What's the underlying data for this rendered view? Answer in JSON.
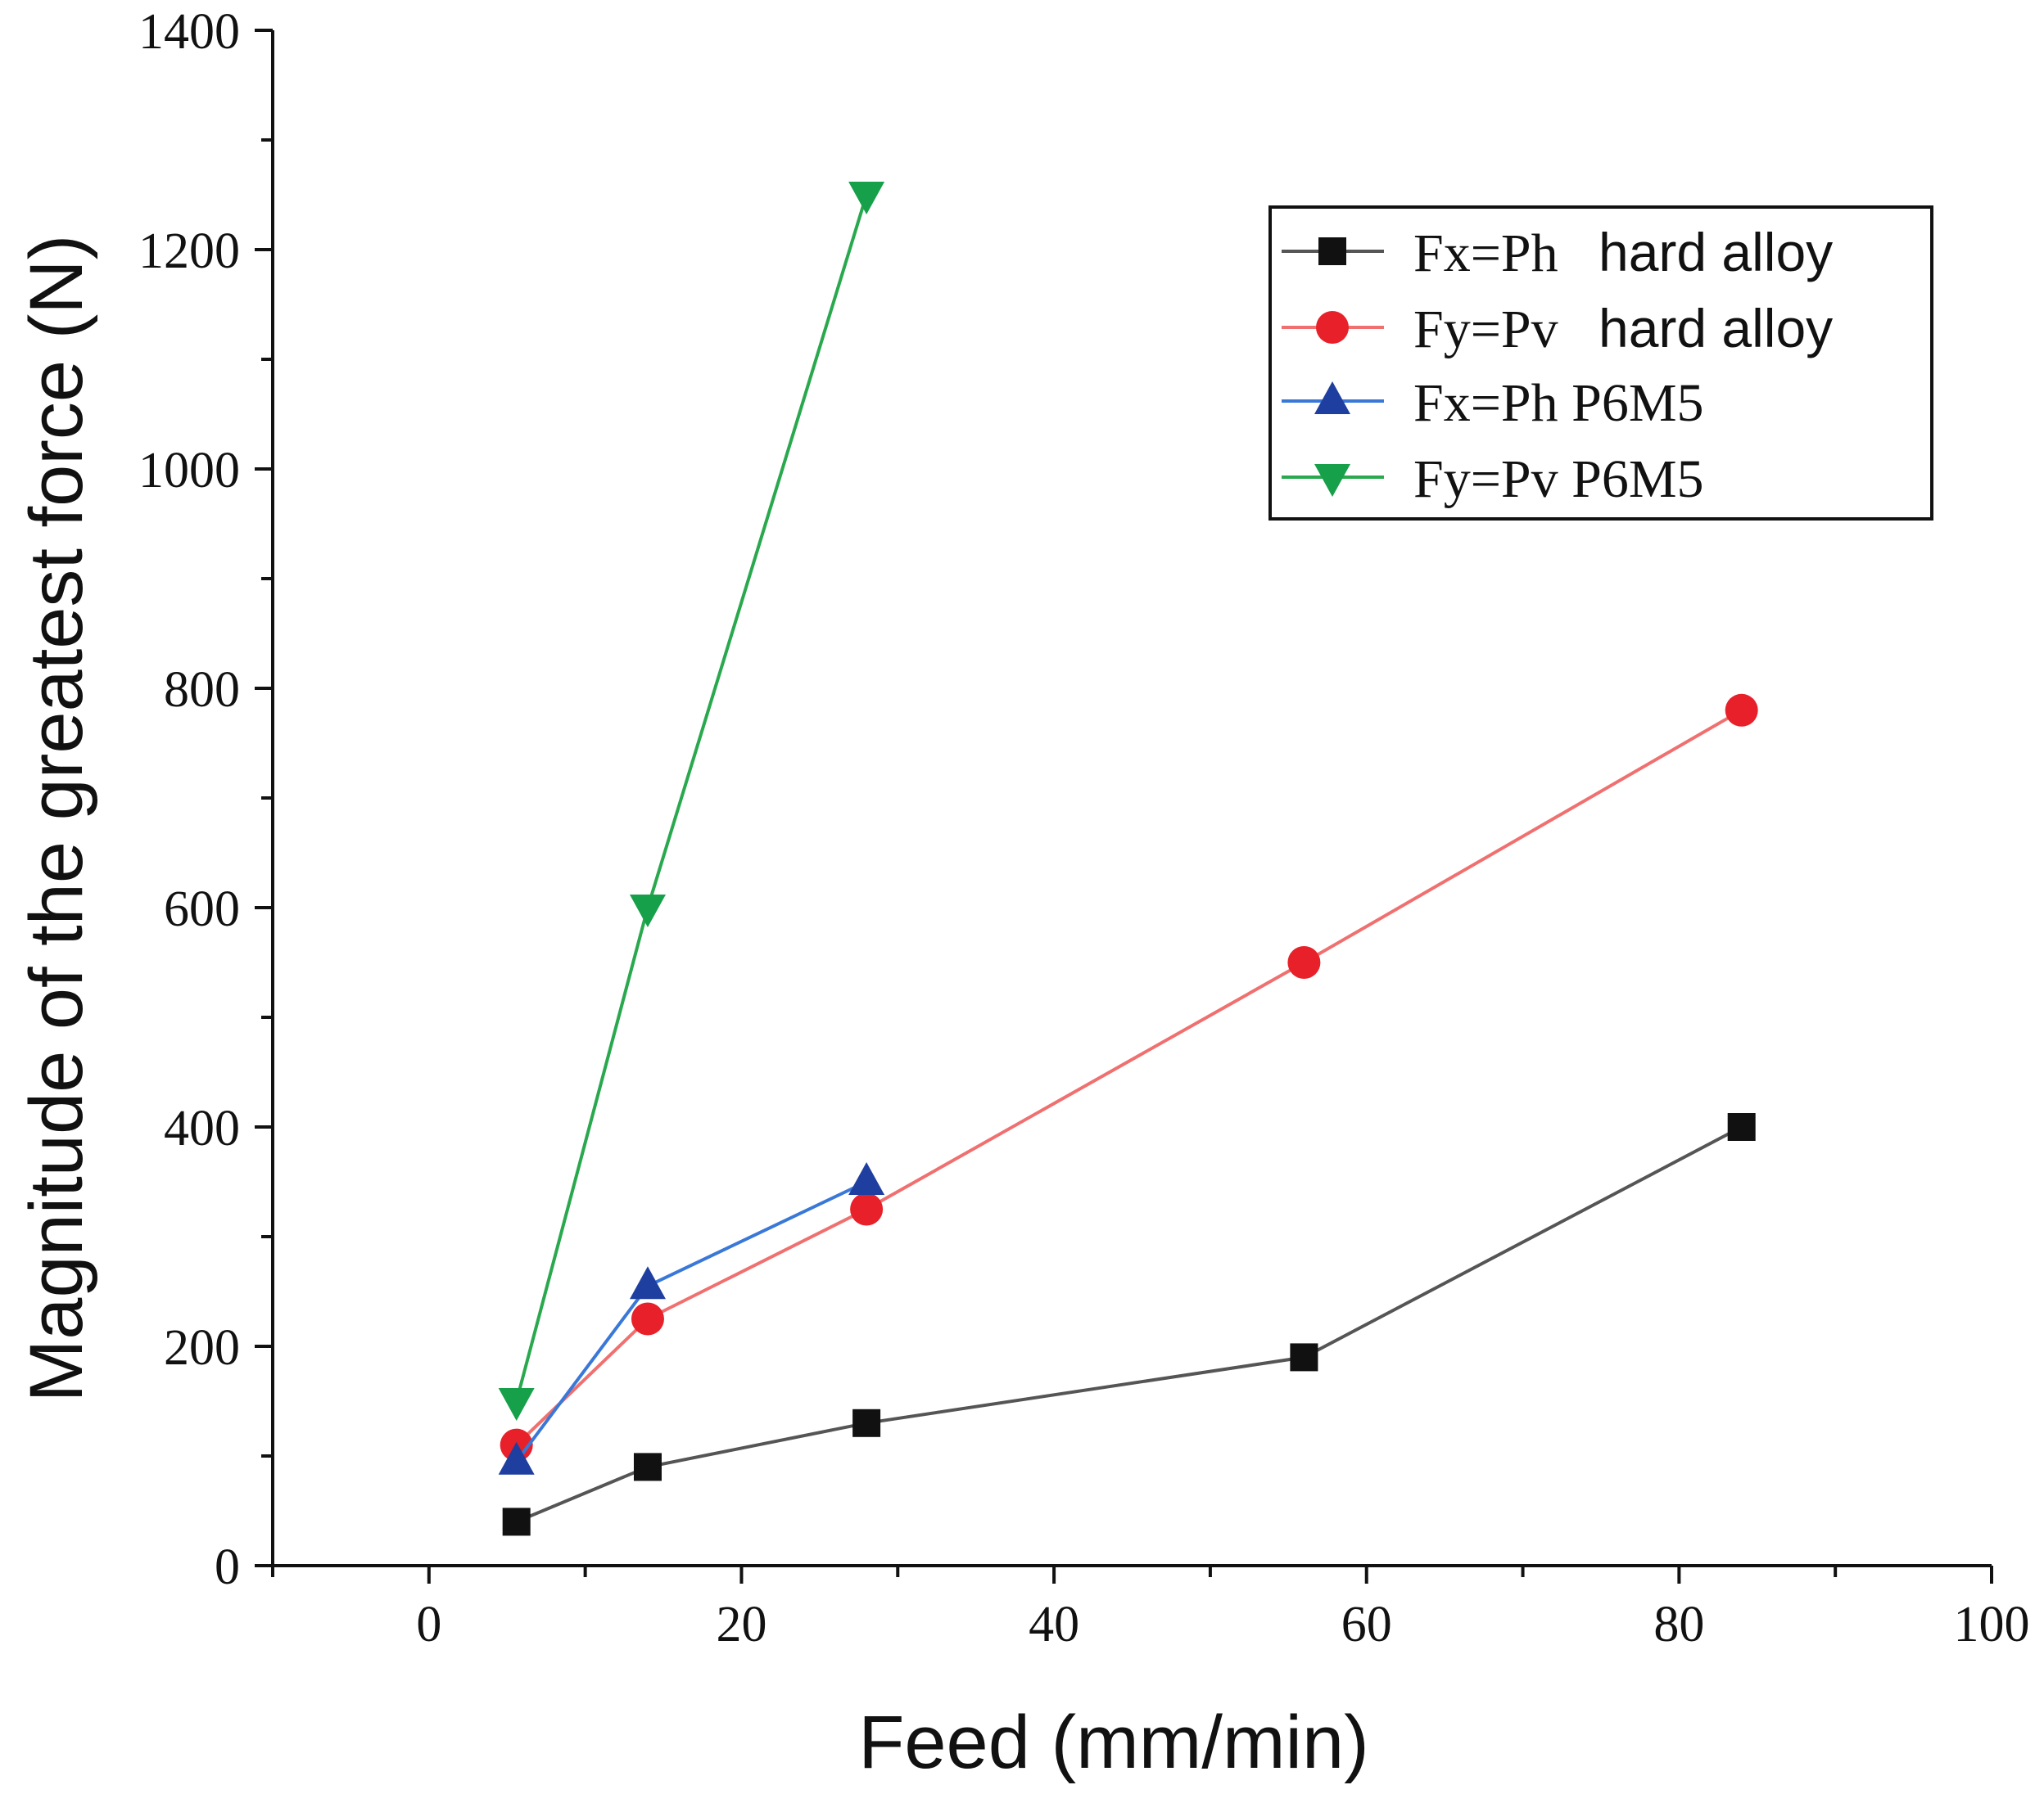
{
  "chart_data": {
    "type": "line",
    "title": "",
    "xlabel": "Feed (mm/min)",
    "ylabel": "Magnitude of the greatest force  (N)",
    "xlim": [
      -10,
      100
    ],
    "ylim": [
      0,
      1400
    ],
    "x_ticks": [
      "0",
      "20",
      "40",
      "60",
      "80",
      "100"
    ],
    "y_ticks": [
      "0",
      "200",
      "400",
      "600",
      "800",
      "1000",
      "1200",
      "1400"
    ],
    "grid": false,
    "legend_position": "top-right",
    "series": [
      {
        "name": "Fx=Ph  hard alloy",
        "name_parts": [
          "Fx=Ph",
          "hard alloy"
        ],
        "color": "#111111",
        "line_color": "#555555",
        "marker": "square",
        "x": [
          5.6,
          14,
          28,
          56,
          84
        ],
        "y": [
          40,
          90,
          130,
          190,
          400
        ]
      },
      {
        "name": "Fy=Pv  hard alloy",
        "name_parts": [
          "Fy=Pv",
          "hard alloy"
        ],
        "color": "#e8202a",
        "line_color": "#f07070",
        "marker": "circle",
        "x": [
          5.6,
          14,
          28,
          56,
          84
        ],
        "y": [
          110,
          225,
          325,
          550,
          780
        ]
      },
      {
        "name": "Fx=Ph P6M5",
        "name_parts": [
          "Fx=Ph P6M5",
          ""
        ],
        "color": "#1f3fa0",
        "line_color": "#3a78d8",
        "marker": "triangle-up",
        "x": [
          5.6,
          14,
          28
        ],
        "y": [
          95,
          255,
          350
        ]
      },
      {
        "name": "Fy=Pv P6M5",
        "name_parts": [
          "Fy=Pv P6M5",
          ""
        ],
        "color": "#17a04a",
        "line_color": "#2aa84e",
        "marker": "triangle-down",
        "x": [
          5.6,
          14,
          28
        ],
        "y": [
          150,
          600,
          1250
        ]
      }
    ]
  }
}
